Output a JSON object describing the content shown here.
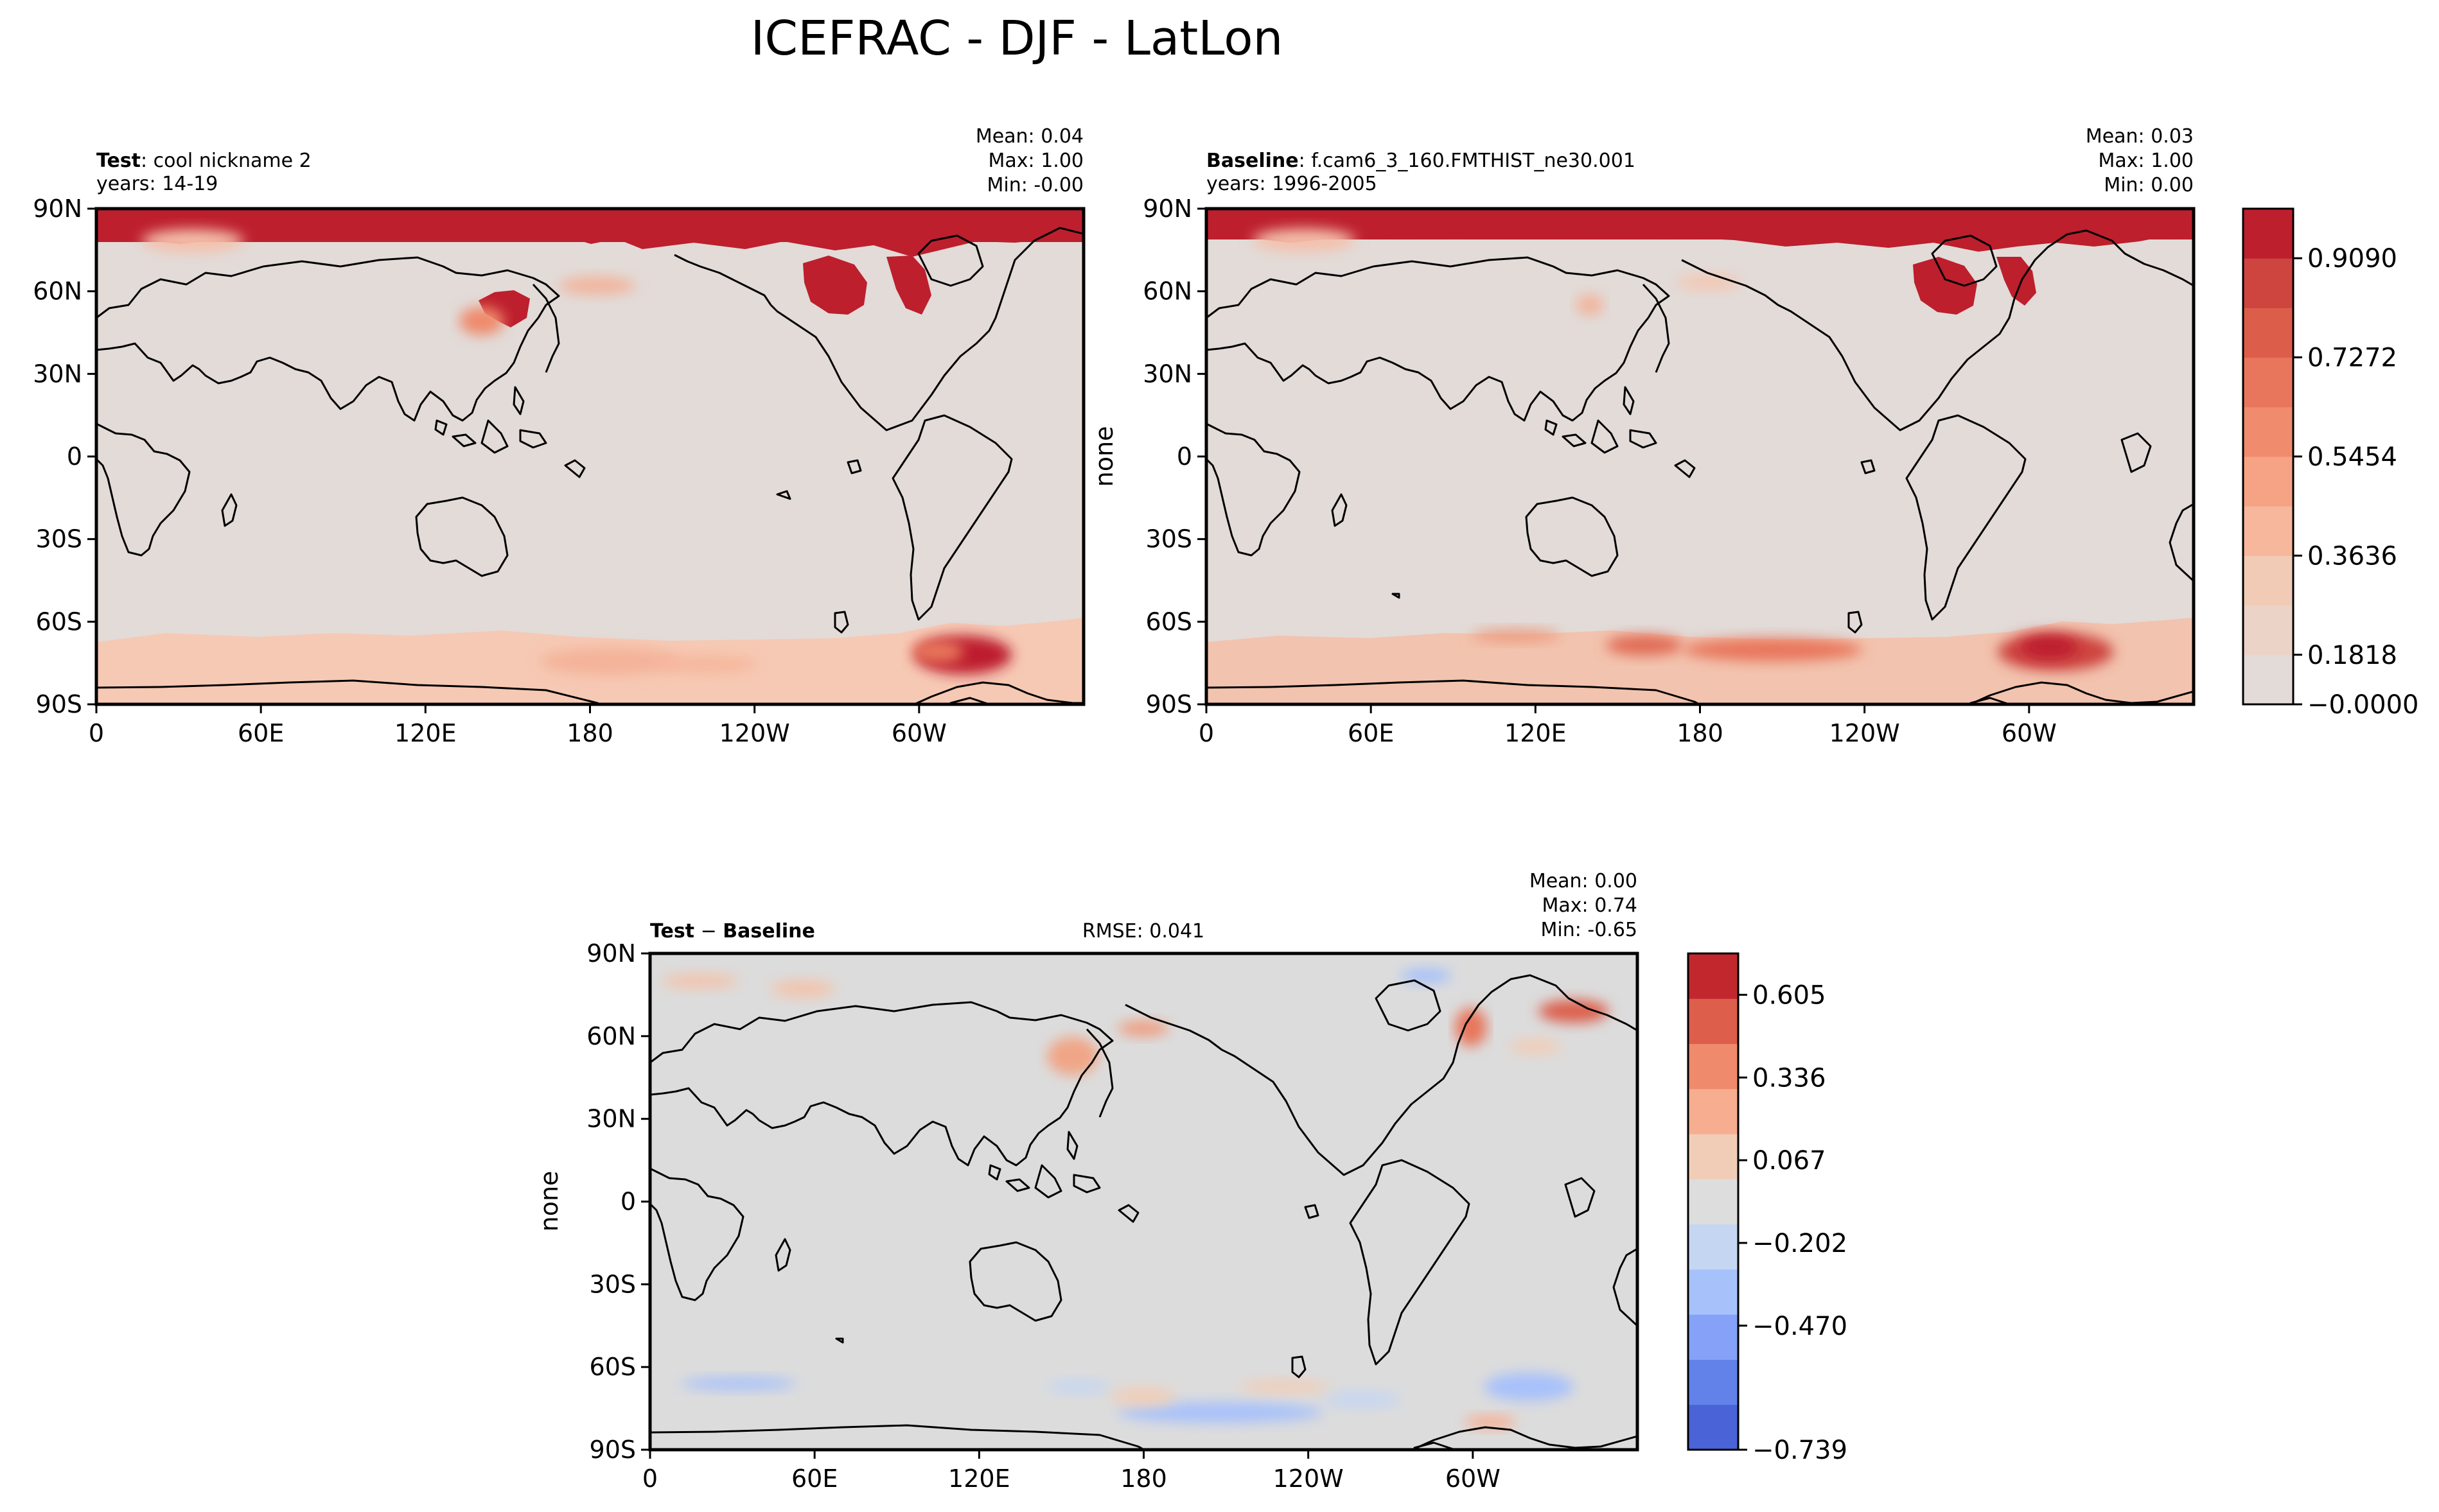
{
  "figure": {
    "title": "ICEFRAC - DJF - LatLon"
  },
  "axes": {
    "lat_ticks": [
      "90N",
      "60N",
      "30N",
      "0",
      "30S",
      "60S",
      "90S"
    ],
    "lon_ticks": [
      "0",
      "60E",
      "120E",
      "180",
      "120W",
      "60W"
    ],
    "ylabel": "none"
  },
  "panels": {
    "test": {
      "label_bold": "Test",
      "label_rest": ": cool nickname 2",
      "years": "years: 14-19",
      "stats": [
        "Mean:  0.04",
        "Max:  1.00",
        "Min: -0.00"
      ]
    },
    "baseline": {
      "label_bold": "Baseline",
      "label_rest": ": f.cam6_3_160.FMTHIST_ne30.001",
      "years": "years: 1996-2005",
      "stats": [
        "Mean:  0.03",
        "Max:  1.00",
        "Min:  0.00"
      ]
    },
    "diff": {
      "label_bold_a": "Test",
      "label_sep": " − ",
      "label_bold_b": "Baseline",
      "rmse": "RMSE: 0.041",
      "stats": [
        "Mean:  0.00",
        "Max:  0.74",
        "Min: -0.65"
      ]
    }
  },
  "colorbars": {
    "main": {
      "labels": [
        "0.9090",
        "0.7272",
        "0.5454",
        "0.3636",
        "0.1818",
        "−0.0000"
      ],
      "colors": [
        "#e2dbd8",
        "#ecd3c7",
        "#f2cbb7",
        "#f6b79c",
        "#f6a385",
        "#f08b6e",
        "#e8765c",
        "#dc5d4a",
        "#ce4540",
        "#bd1f2d"
      ]
    },
    "diff": {
      "labels": [
        "0.605",
        "0.336",
        "0.067",
        "−0.202",
        "−0.470",
        "−0.739"
      ],
      "colors": [
        "#4a63d6",
        "#6282ea",
        "#85a2f8",
        "#a7c1fb",
        "#c5d6f2",
        "#dddddd",
        "#f1cdb7",
        "#f7ad8f",
        "#ef8a6c",
        "#dc5e4b",
        "#c2272e"
      ]
    }
  },
  "colors": {
    "land_sea_main": "#e2dbd8",
    "land_sea_diff": "#dcdcdc",
    "ice_high": "#bd1f2d",
    "coast": "#000000"
  }
}
